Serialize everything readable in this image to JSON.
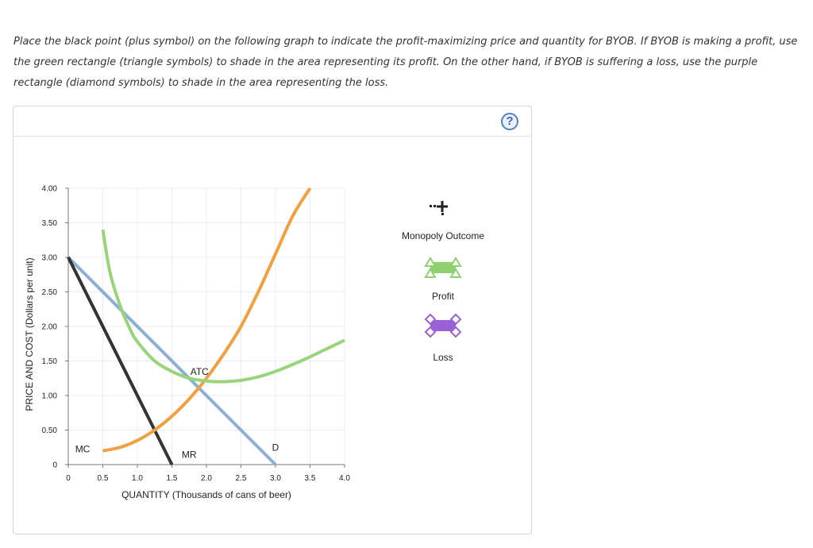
{
  "instructions": "Place the black point (plus symbol) on the following graph to indicate the profit-maximizing price and quantity for BYOB. If BYOB is making a profit, use the green rectangle (triangle symbols) to shade in the area representing its profit. On the other hand, if BYOB is suffering a loss, use the purple rectangle (diamond symbols) to shade in the area representing the loss.",
  "help_label": "?",
  "legend": {
    "monopoly_outcome": "Monopoly Outcome",
    "profit": "Profit",
    "loss": "Loss",
    "colors": {
      "plus": "#222222",
      "profit": "#8fd16f",
      "loss": "#9b60d6"
    }
  },
  "chart_data": {
    "type": "line",
    "xlabel": "QUANTITY (Thousands of cans of beer)",
    "ylabel": "PRICE AND COST (Dollars per unit)",
    "xlim": [
      0,
      4.0
    ],
    "ylim": [
      0,
      4.0
    ],
    "x_ticks": [
      "0",
      "0.5",
      "1.0",
      "1.5",
      "2.0",
      "2.5",
      "3.0",
      "3.5",
      "4.0"
    ],
    "y_ticks": [
      "0",
      "0.50",
      "1.00",
      "1.50",
      "2.00",
      "2.50",
      "3.00",
      "3.50",
      "4.00"
    ],
    "grid": true,
    "series": [
      {
        "name": "D",
        "color": "#8eafd4",
        "points": [
          [
            0,
            3.0
          ],
          [
            3.0,
            0
          ]
        ]
      },
      {
        "name": "MR",
        "color": "#333333",
        "points": [
          [
            0,
            3.0
          ],
          [
            1.5,
            0
          ]
        ]
      },
      {
        "name": "MC",
        "color": "#f0a040",
        "points": [
          [
            0.5,
            0.2
          ],
          [
            0.75,
            0.25
          ],
          [
            1.0,
            0.35
          ],
          [
            1.25,
            0.5
          ],
          [
            1.5,
            0.7
          ],
          [
            1.75,
            0.95
          ],
          [
            2.0,
            1.25
          ],
          [
            2.25,
            1.6
          ],
          [
            2.5,
            2.0
          ],
          [
            2.75,
            2.5
          ],
          [
            3.0,
            3.05
          ],
          [
            3.25,
            3.6
          ],
          [
            3.5,
            4.0
          ]
        ]
      },
      {
        "name": "ATC",
        "color": "#98d47a",
        "points": [
          [
            0.5,
            3.4
          ],
          [
            0.6,
            2.8
          ],
          [
            0.75,
            2.3
          ],
          [
            0.9,
            1.95
          ],
          [
            1.0,
            1.78
          ],
          [
            1.25,
            1.5
          ],
          [
            1.5,
            1.35
          ],
          [
            1.75,
            1.25
          ],
          [
            2.0,
            1.21
          ],
          [
            2.25,
            1.2
          ],
          [
            2.5,
            1.22
          ],
          [
            2.75,
            1.27
          ],
          [
            3.0,
            1.35
          ],
          [
            3.25,
            1.45
          ],
          [
            3.5,
            1.56
          ],
          [
            3.75,
            1.68
          ],
          [
            4.0,
            1.8
          ]
        ]
      }
    ],
    "curve_labels": {
      "D": {
        "x": 3.0,
        "y": 0.2
      },
      "MR": {
        "x": 1.75,
        "y": 0.1
      },
      "MC": {
        "x": 0.1,
        "y": 0.18
      },
      "ATC": {
        "x": 1.9,
        "y": 1.3
      }
    }
  }
}
